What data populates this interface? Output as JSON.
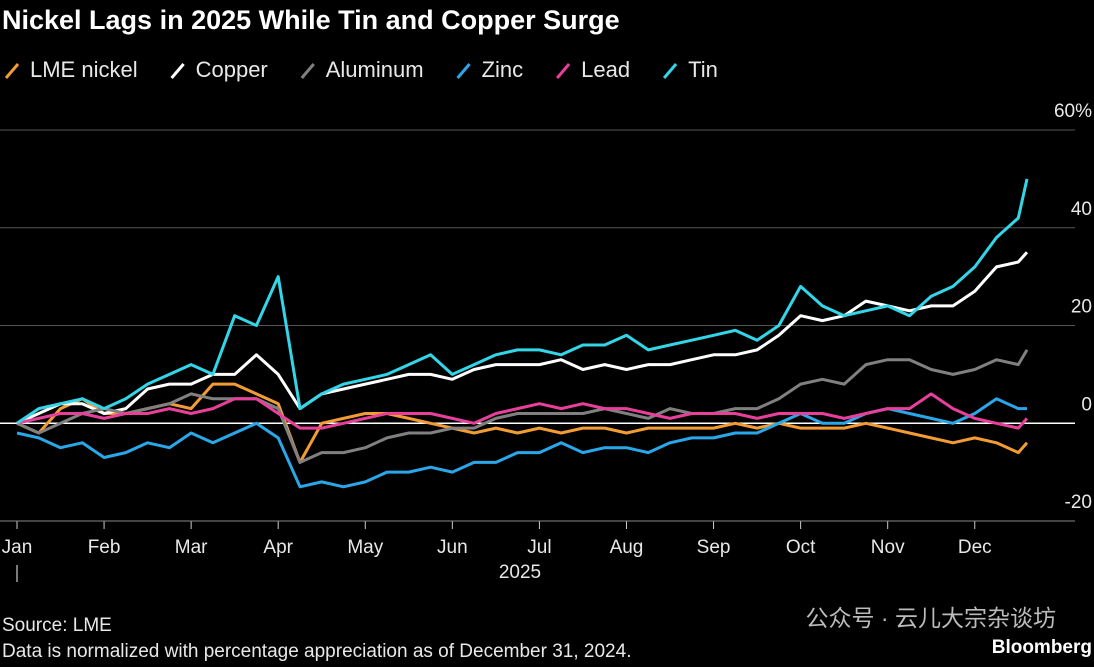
{
  "chart_data": {
    "type": "line",
    "title": "Nickel Lags in 2025 While Tin and Copper Surge",
    "x_label": "2025",
    "source": "Source: LME",
    "note": "Data is normalized with percentage appreciation as of December 31, 2024.",
    "brand": "Bloomberg",
    "watermark": "公众号 · 云儿大宗杂谈坊",
    "xlim": [
      0,
      11.6
    ],
    "xticks": [
      {
        "value": 0,
        "label": "Jan"
      },
      {
        "value": 1,
        "label": "Feb"
      },
      {
        "value": 2,
        "label": "Mar"
      },
      {
        "value": 3,
        "label": "Apr"
      },
      {
        "value": 4,
        "label": "May"
      },
      {
        "value": 5,
        "label": "Jun"
      },
      {
        "value": 6,
        "label": "Jul"
      },
      {
        "value": 7,
        "label": "Aug"
      },
      {
        "value": 8,
        "label": "Sep"
      },
      {
        "value": 9,
        "label": "Oct"
      },
      {
        "value": 10,
        "label": "Nov"
      },
      {
        "value": 11,
        "label": "Dec"
      }
    ],
    "ylim": [
      -20,
      60
    ],
    "yticks": [
      -20,
      0,
      20,
      40,
      {
        "value": 60,
        "label": "60%"
      }
    ],
    "grid": true,
    "x": [
      0,
      0.25,
      0.5,
      0.75,
      1,
      1.25,
      1.5,
      1.75,
      2,
      2.25,
      2.5,
      2.75,
      3,
      3.25,
      3.5,
      3.75,
      4,
      4.25,
      4.5,
      4.75,
      5,
      5.25,
      5.5,
      5.75,
      6,
      6.25,
      6.5,
      6.75,
      7,
      7.25,
      7.5,
      7.75,
      8,
      8.25,
      8.5,
      8.75,
      9,
      9.25,
      9.5,
      9.75,
      10,
      10.25,
      10.5,
      10.75,
      11,
      11.25,
      11.5,
      11.6
    ],
    "series": [
      {
        "name": "LME nickel",
        "color": "#f39c33",
        "values": [
          0,
          -2,
          3,
          5,
          2,
          2,
          3,
          4,
          3,
          8,
          8,
          6,
          4,
          -8,
          0,
          1,
          2,
          2,
          1,
          0,
          -1,
          -2,
          -1,
          -2,
          -1,
          -2,
          -1,
          -1,
          -2,
          -1,
          -1,
          -1,
          -1,
          0,
          -1,
          0,
          -1,
          -1,
          -1,
          0,
          -1,
          -2,
          -3,
          -4,
          -3,
          -4,
          -6,
          -4
        ]
      },
      {
        "name": "Copper",
        "color": "#ffffff",
        "values": [
          0,
          2,
          4,
          4,
          2,
          3,
          7,
          8,
          8,
          10,
          10,
          14,
          10,
          3,
          6,
          7,
          8,
          9,
          10,
          10,
          9,
          11,
          12,
          12,
          12,
          13,
          11,
          12,
          11,
          12,
          12,
          13,
          14,
          14,
          15,
          18,
          22,
          21,
          22,
          25,
          24,
          23,
          24,
          24,
          27,
          32,
          33,
          35
        ]
      },
      {
        "name": "Aluminum",
        "color": "#808080",
        "values": [
          0,
          -2,
          0,
          2,
          3,
          2,
          3,
          4,
          6,
          5,
          5,
          5,
          3,
          -8,
          -6,
          -6,
          -5,
          -3,
          -2,
          -2,
          -1,
          -1,
          1,
          2,
          2,
          2,
          2,
          3,
          2,
          1,
          3,
          2,
          2,
          3,
          3,
          5,
          8,
          9,
          8,
          12,
          13,
          13,
          11,
          10,
          11,
          13,
          12,
          15
        ]
      },
      {
        "name": "Zinc",
        "color": "#2aa7e8",
        "values": [
          -2,
          -3,
          -5,
          -4,
          -7,
          -6,
          -4,
          -5,
          -2,
          -4,
          -2,
          0,
          -3,
          -13,
          -12,
          -13,
          -12,
          -10,
          -10,
          -9,
          -10,
          -8,
          -8,
          -6,
          -6,
          -4,
          -6,
          -5,
          -5,
          -6,
          -4,
          -3,
          -3,
          -2,
          -2,
          0,
          2,
          0,
          0,
          2,
          3,
          2,
          1,
          0,
          2,
          5,
          3,
          3
        ]
      },
      {
        "name": "Lead",
        "color": "#e8409a",
        "values": [
          0,
          1,
          2,
          2,
          1,
          2,
          2,
          3,
          2,
          3,
          5,
          5,
          2,
          -1,
          -1,
          0,
          1,
          2,
          2,
          2,
          1,
          0,
          2,
          3,
          4,
          3,
          4,
          3,
          3,
          2,
          1,
          2,
          2,
          2,
          1,
          2,
          2,
          2,
          1,
          2,
          3,
          3,
          6,
          3,
          1,
          0,
          -1,
          1
        ]
      },
      {
        "name": "Tin",
        "color": "#33d6e8",
        "values": [
          0,
          3,
          4,
          5,
          3,
          5,
          8,
          10,
          12,
          10,
          22,
          20,
          30,
          3,
          6,
          8,
          9,
          10,
          12,
          14,
          10,
          12,
          14,
          15,
          15,
          14,
          16,
          16,
          18,
          15,
          16,
          17,
          18,
          19,
          17,
          20,
          28,
          24,
          22,
          23,
          24,
          22,
          26,
          28,
          32,
          38,
          42,
          50
        ]
      }
    ]
  }
}
